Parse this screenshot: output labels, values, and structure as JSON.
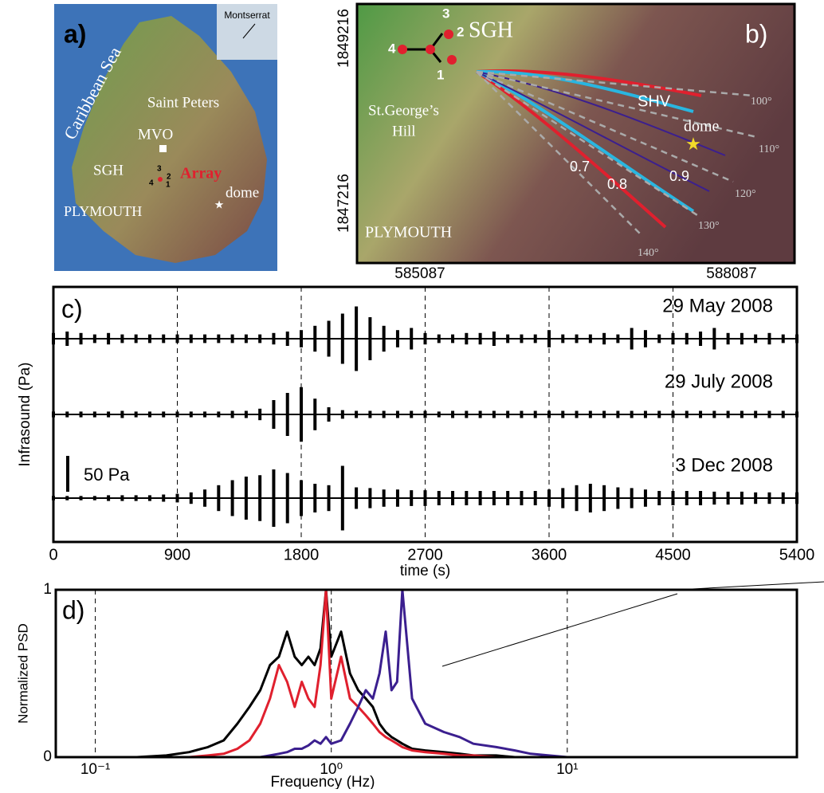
{
  "map_a": {
    "label": "a)",
    "sea": "Caribbean Sea",
    "inset": "Montserrat",
    "places": [
      "Saint Peters",
      "MVO",
      "SGH",
      "Array",
      "dome",
      "PLYMOUTH"
    ],
    "stations": [
      "3",
      "2",
      "4",
      "1"
    ]
  },
  "map_b": {
    "label": "b)",
    "places": [
      "SGH",
      "St.George’s",
      "Hill",
      "SHV",
      "dome",
      "PLYMOUTH"
    ],
    "stations": [
      "3",
      "2",
      "4",
      "1"
    ],
    "contours": [
      0.7,
      0.8,
      0.9
    ],
    "azimuths": [
      "100°",
      "110°",
      "120°",
      "130°",
      "140°"
    ],
    "yticks": [
      1849216,
      1847216
    ],
    "xticks": [
      585087,
      588087
    ]
  },
  "chart_data": [
    {
      "type": "waveform",
      "title": "c)",
      "y_label": "Infrasound (Pa)",
      "x_label": "time (s)",
      "xlim": [
        0,
        5400
      ],
      "xticks": [
        0,
        900,
        1800,
        2700,
        3600,
        4500,
        5400
      ],
      "grid": true,
      "scale_bar": {
        "value": 50,
        "label": "50 Pa"
      },
      "x": [
        0,
        100,
        200,
        300,
        400,
        500,
        600,
        700,
        800,
        900,
        1000,
        1100,
        1200,
        1300,
        1400,
        1500,
        1600,
        1700,
        1800,
        1900,
        2000,
        2100,
        2200,
        2300,
        2400,
        2500,
        2600,
        2700,
        2800,
        2900,
        3000,
        3100,
        3200,
        3300,
        3400,
        3500,
        3600,
        3700,
        3800,
        3900,
        4000,
        4100,
        4200,
        4300,
        4400,
        4500,
        4600,
        4700,
        4800,
        4900,
        5000,
        5100,
        5200,
        5300,
        5400
      ],
      "series": [
        {
          "name": "29 May 2008",
          "color": "#000000",
          "values": [
            8,
            10,
            8,
            6,
            8,
            6,
            6,
            6,
            6,
            6,
            6,
            6,
            6,
            6,
            6,
            6,
            8,
            10,
            12,
            18,
            25,
            35,
            45,
            30,
            18,
            12,
            15,
            8,
            6,
            6,
            8,
            8,
            10,
            6,
            6,
            6,
            12,
            6,
            6,
            6,
            8,
            6,
            15,
            12,
            6,
            8,
            8,
            10,
            15,
            8,
            8,
            6,
            8,
            6,
            6
          ]
        },
        {
          "name": "29 July 2008",
          "color": "#000000",
          "values": [
            4,
            4,
            4,
            4,
            4,
            5,
            4,
            4,
            4,
            4,
            4,
            4,
            4,
            5,
            5,
            8,
            20,
            30,
            38,
            22,
            10,
            6,
            5,
            5,
            5,
            5,
            5,
            5,
            4,
            5,
            5,
            5,
            5,
            5,
            5,
            5,
            5,
            5,
            5,
            5,
            5,
            5,
            5,
            5,
            5,
            5,
            5,
            5,
            5,
            5,
            5,
            5,
            5,
            5,
            4
          ]
        },
        {
          "name": "3 Dec 2008",
          "color": "#000000",
          "values": [
            3,
            3,
            3,
            3,
            4,
            4,
            4,
            4,
            5,
            6,
            8,
            12,
            18,
            25,
            30,
            32,
            40,
            35,
            25,
            20,
            18,
            45,
            15,
            14,
            12,
            12,
            11,
            11,
            10,
            10,
            10,
            10,
            10,
            10,
            10,
            10,
            12,
            14,
            18,
            20,
            18,
            15,
            14,
            12,
            10,
            10,
            10,
            10,
            9,
            9,
            9,
            8,
            8,
            8,
            8
          ]
        }
      ]
    },
    {
      "type": "line",
      "title": "d)",
      "y_label": "Normalized PSD",
      "x_label": "Frequency (Hz)",
      "log_x": true,
      "xlim": [
        0.068,
        94
      ],
      "ylim": [
        0,
        1
      ],
      "grid": true,
      "xticks": [
        {
          "value": 0.1,
          "label": "10⁻¹"
        },
        {
          "value": 1,
          "label": "10⁰"
        },
        {
          "value": 10,
          "label": "10¹"
        }
      ],
      "yticks": [
        0,
        1
      ],
      "x": [
        0.07,
        0.1,
        0.15,
        0.2,
        0.25,
        0.3,
        0.35,
        0.4,
        0.45,
        0.5,
        0.55,
        0.6,
        0.65,
        0.7,
        0.75,
        0.8,
        0.85,
        0.9,
        0.95,
        1.0,
        1.1,
        1.2,
        1.3,
        1.4,
        1.5,
        1.6,
        1.7,
        1.8,
        1.9,
        2.0,
        2.2,
        2.5,
        3,
        3.5,
        4,
        5,
        6,
        7,
        10,
        20,
        50,
        94
      ],
      "series": [
        {
          "color": "#000000",
          "values": [
            0,
            0,
            0,
            0.01,
            0.03,
            0.06,
            0.1,
            0.2,
            0.3,
            0.4,
            0.55,
            0.6,
            0.75,
            0.6,
            0.55,
            0.6,
            0.55,
            0.65,
            1.0,
            0.6,
            0.75,
            0.5,
            0.4,
            0.35,
            0.3,
            0.2,
            0.15,
            0.12,
            0.1,
            0.08,
            0.05,
            0.04,
            0.03,
            0.02,
            0.01,
            0.01,
            0,
            0,
            0,
            0,
            0,
            0
          ]
        },
        {
          "color": "#e0202e",
          "values": [
            0,
            0,
            0,
            0,
            0,
            0.01,
            0.02,
            0.05,
            0.1,
            0.2,
            0.35,
            0.55,
            0.45,
            0.3,
            0.45,
            0.35,
            0.3,
            0.55,
            1.0,
            0.35,
            0.6,
            0.35,
            0.3,
            0.25,
            0.2,
            0.15,
            0.12,
            0.1,
            0.08,
            0.06,
            0.04,
            0.03,
            0.02,
            0.01,
            0.01,
            0,
            0,
            0,
            0,
            0,
            0,
            0
          ]
        },
        {
          "color": "#3b1f8f",
          "values": [
            0,
            0,
            0,
            0,
            0,
            0,
            0,
            0,
            0,
            0,
            0.01,
            0.02,
            0.03,
            0.05,
            0.05,
            0.07,
            0.1,
            0.08,
            0.12,
            0.08,
            0.1,
            0.2,
            0.3,
            0.4,
            0.35,
            0.5,
            0.75,
            0.4,
            0.45,
            1.0,
            0.35,
            0.2,
            0.15,
            0.12,
            0.08,
            0.06,
            0.04,
            0.02,
            0,
            0,
            0,
            0
          ]
        }
      ]
    }
  ]
}
